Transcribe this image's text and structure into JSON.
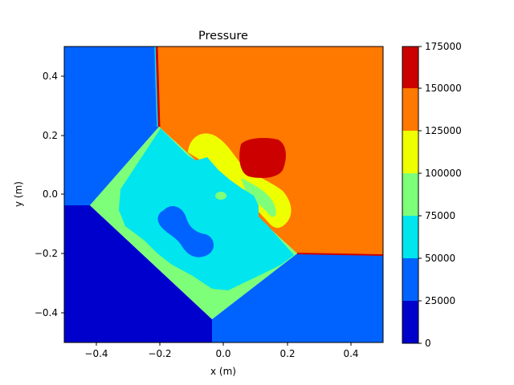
{
  "chart_data": {
    "type": "heatmap",
    "title": "Pressure",
    "xlabel": "x (m)",
    "ylabel": "y (m)",
    "xlim": [
      -0.5,
      0.5
    ],
    "ylim": [
      -0.5,
      0.5
    ],
    "x_ticks": [
      -0.4,
      -0.2,
      0.0,
      0.2,
      0.4
    ],
    "x_tick_labels": [
      "−0.4",
      "−0.2",
      "0.0",
      "0.2",
      "0.4"
    ],
    "y_ticks": [
      -0.4,
      -0.2,
      0.0,
      0.2,
      0.4
    ],
    "y_tick_labels": [
      "−0.4",
      "−0.2",
      "0.0",
      "0.2",
      "0.4"
    ],
    "colorbar": {
      "levels": [
        0,
        25000,
        50000,
        75000,
        100000,
        125000,
        150000,
        175000
      ],
      "tick_labels": [
        "0",
        "25000",
        "50000",
        "75000",
        "100000",
        "125000",
        "150000",
        "175000"
      ],
      "colors": [
        "#0000cd",
        "#0063ff",
        "#00e5ee",
        "#7dff7a",
        "#eeff00",
        "#ff7800",
        "#cd0000"
      ]
    },
    "regions": [
      {
        "name": "upper-left region",
        "level_range": [
          25000,
          50000
        ],
        "polygon": [
          [
            -0.5,
            0.5
          ],
          [
            -0.21,
            0.5
          ],
          [
            -0.195,
            0.23
          ],
          [
            -0.42,
            -0.035
          ],
          [
            -0.5,
            -0.035
          ]
        ]
      },
      {
        "name": "upper-right region",
        "level_range": [
          125000,
          150000
        ],
        "polygon": [
          [
            -0.21,
            0.5
          ],
          [
            0.5,
            0.5
          ],
          [
            0.5,
            -0.205
          ],
          [
            0.23,
            -0.2
          ],
          [
            -0.195,
            0.23
          ]
        ]
      },
      {
        "name": "lower-right region",
        "level_range": [
          25000,
          50000
        ],
        "polygon": [
          [
            0.23,
            -0.2
          ],
          [
            0.5,
            -0.21
          ],
          [
            0.5,
            -0.5
          ],
          [
            -0.035,
            -0.5
          ],
          [
            -0.035,
            -0.42
          ]
        ]
      },
      {
        "name": "lower-left region",
        "level_range": [
          0,
          25000
        ],
        "polygon": [
          [
            -0.5,
            -0.035
          ],
          [
            -0.42,
            -0.035
          ],
          [
            -0.035,
            -0.42
          ],
          [
            -0.035,
            -0.5
          ],
          [
            -0.5,
            -0.5
          ]
        ]
      },
      {
        "name": "central quadrilateral outer band",
        "level_range": [
          75000,
          100000
        ],
        "polygon": [
          [
            -0.195,
            0.23
          ],
          [
            0.23,
            -0.2
          ],
          [
            -0.035,
            -0.42
          ],
          [
            -0.42,
            -0.035
          ]
        ]
      },
      {
        "name": "central quadrilateral core",
        "level_range": [
          50000,
          75000
        ],
        "polygon": [
          [
            -0.195,
            0.21
          ],
          [
            -0.11,
            0.13
          ],
          [
            -0.06,
            0.12
          ],
          [
            0.0,
            0.08
          ],
          [
            0.06,
            0.04
          ],
          [
            0.11,
            0.0
          ],
          [
            0.13,
            -0.05
          ],
          [
            0.21,
            -0.2
          ],
          [
            0.12,
            -0.26
          ],
          [
            0.0,
            -0.32
          ],
          [
            -0.1,
            -0.3
          ],
          [
            -0.15,
            -0.22
          ],
          [
            -0.22,
            -0.15
          ],
          [
            -0.3,
            -0.07
          ],
          [
            -0.33,
            -0.0
          ],
          [
            -0.3,
            0.05
          ]
        ]
      },
      {
        "name": "low-pressure blob",
        "level_range": [
          25000,
          50000
        ],
        "polygon": [
          [
            -0.21,
            -0.06
          ],
          [
            -0.17,
            -0.04
          ],
          [
            -0.13,
            -0.07
          ],
          [
            -0.09,
            -0.12
          ],
          [
            -0.05,
            -0.14
          ],
          [
            -0.02,
            -0.17
          ],
          [
            -0.04,
            -0.21
          ],
          [
            -0.09,
            -0.21
          ],
          [
            -0.13,
            -0.17
          ],
          [
            -0.17,
            -0.13
          ],
          [
            -0.21,
            -0.1
          ]
        ]
      },
      {
        "name": "high-pressure core",
        "level_range": [
          150000,
          175000
        ],
        "polygon": [
          [
            0.06,
            0.17
          ],
          [
            0.11,
            0.19
          ],
          [
            0.16,
            0.18
          ],
          [
            0.19,
            0.14
          ],
          [
            0.19,
            0.09
          ],
          [
            0.15,
            0.05
          ],
          [
            0.09,
            0.05
          ],
          [
            0.05,
            0.08
          ],
          [
            0.05,
            0.13
          ]
        ]
      }
    ]
  }
}
